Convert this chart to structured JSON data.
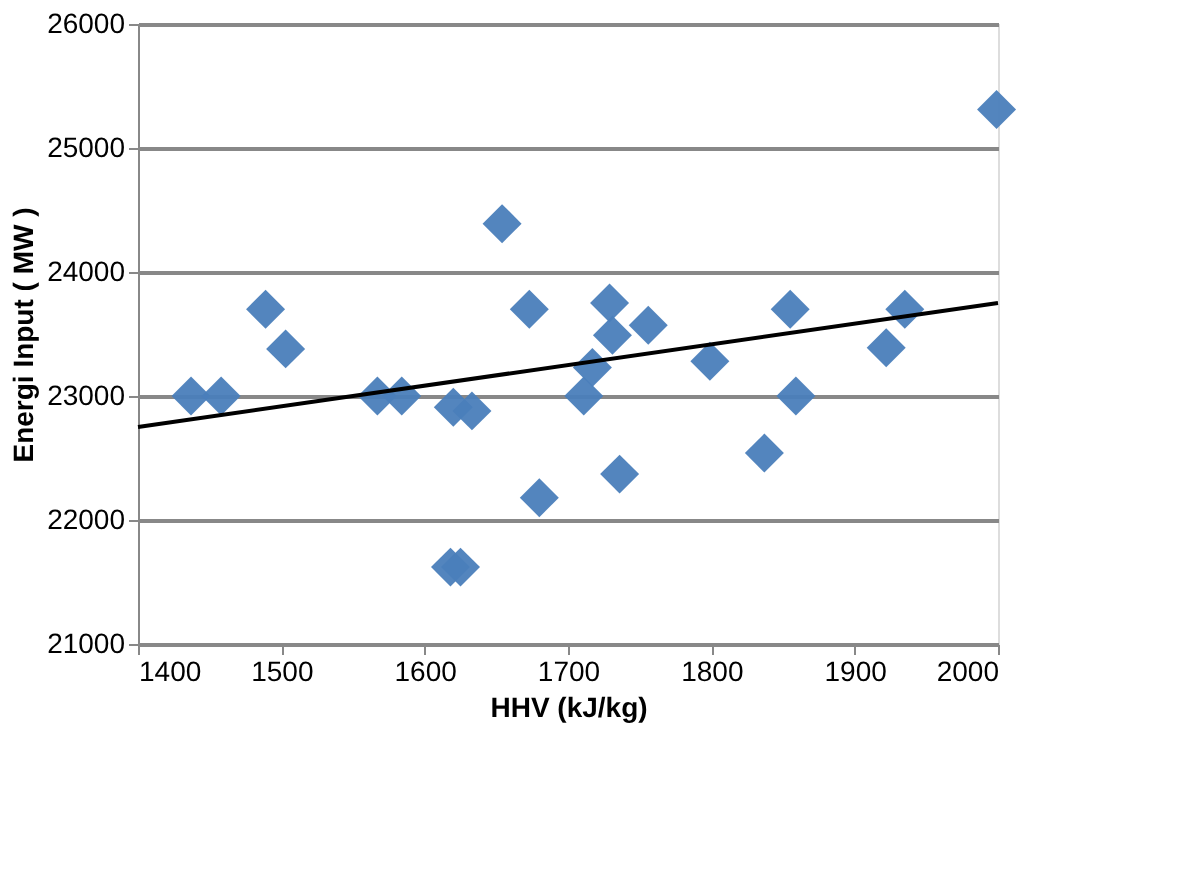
{
  "chart_data": {
    "type": "scatter",
    "xlabel": "HHV (kJ/kg)",
    "ylabel": "Energi Input ( MW )",
    "xlim": [
      1400,
      2000
    ],
    "xticks": [
      1400,
      1500,
      1600,
      1700,
      1800,
      1900,
      2000
    ],
    "ylim": [
      21000,
      26000
    ],
    "yticks": [
      21000,
      22000,
      23000,
      24000,
      25000,
      26000
    ],
    "grid": "y",
    "marker": "diamond",
    "series": [
      {
        "color": "#4a7ebb",
        "x": [
          1437,
          1458,
          1489,
          1503,
          1567,
          1584,
          1620,
          1633,
          1618,
          1625,
          1654,
          1673,
          1680,
          1711,
          1729,
          1731,
          1717,
          1736,
          1756,
          1799,
          1855,
          1859,
          1837,
          1922,
          1935,
          1999
        ],
        "values": [
          23000,
          23000,
          23700,
          23380,
          23000,
          23000,
          22910,
          22880,
          21620,
          21620,
          24390,
          23700,
          22180,
          23000,
          23750,
          23490,
          23230,
          22370,
          23570,
          23280,
          23700,
          23000,
          22540,
          23390,
          23700,
          25310
        ]
      },
      {
        "type": "line",
        "color": "#000000",
        "marker": "none",
        "x": [
          1400,
          2000
        ],
        "values": [
          22750,
          23750
        ]
      }
    ]
  }
}
